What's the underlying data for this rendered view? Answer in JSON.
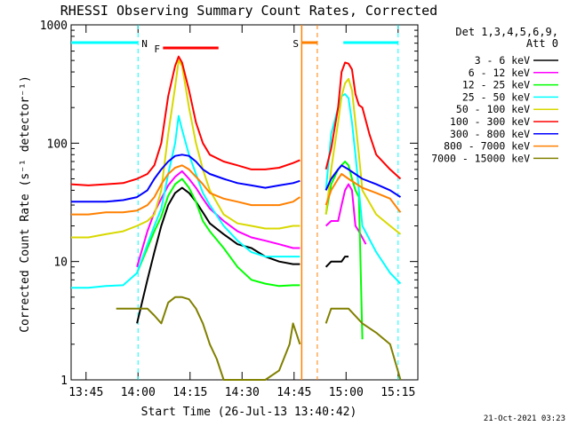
{
  "chart_data": {
    "type": "line",
    "title": "RHESSI Observing Summary Count Rates, Corrected",
    "xlabel": "Start Time (26-Jul-13 13:40:42)",
    "ylabel": "Corrected Count Rate (s⁻¹ detector⁻¹)",
    "y_scale": "log",
    "ylim": [
      1,
      1000
    ],
    "xlim_minutes": [
      0,
      100
    ],
    "x_ticks": [
      {
        "t": 4.3,
        "label": "13:45"
      },
      {
        "t": 19.3,
        "label": "14:00"
      },
      {
        "t": 34.3,
        "label": "14:15"
      },
      {
        "t": 49.3,
        "label": "14:30"
      },
      {
        "t": 64.3,
        "label": "14:45"
      },
      {
        "t": 79.3,
        "label": "15:00"
      },
      {
        "t": 94.3,
        "label": "15:15"
      }
    ],
    "y_ticks": [
      {
        "v": 1,
        "label": "1"
      },
      {
        "v": 10,
        "label": "10"
      },
      {
        "v": 100,
        "label": "100"
      },
      {
        "v": 1000,
        "label": "1000"
      }
    ],
    "legend_header": [
      "Det 1,3,4,5,6,9,",
      "Att 0"
    ],
    "legend_placement": "right",
    "gaps": [
      [
        66.5,
        73.0
      ]
    ],
    "series": [
      {
        "name": "3 - 6 keV",
        "color": "#000000",
        "points": [
          [
            19,
            3
          ],
          [
            22,
            7
          ],
          [
            24,
            12
          ],
          [
            26,
            20
          ],
          [
            28,
            30
          ],
          [
            30,
            38
          ],
          [
            32,
            42
          ],
          [
            34,
            38
          ],
          [
            36,
            32
          ],
          [
            38,
            26
          ],
          [
            40,
            21
          ],
          [
            44,
            17
          ],
          [
            48,
            14
          ],
          [
            52,
            13
          ],
          [
            56,
            11
          ],
          [
            60,
            10
          ],
          [
            64,
            9.5
          ],
          [
            66,
            9.5
          ],
          [
            73.5,
            9
          ],
          [
            75,
            10
          ],
          [
            78,
            10
          ],
          [
            79,
            11
          ],
          [
            80,
            11
          ]
        ]
      },
      {
        "name": "6 - 12 keV",
        "color": "#ff00ff",
        "points": [
          [
            19,
            9
          ],
          [
            22,
            18
          ],
          [
            24,
            26
          ],
          [
            26,
            34
          ],
          [
            28,
            44
          ],
          [
            30,
            52
          ],
          [
            32,
            58
          ],
          [
            34,
            50
          ],
          [
            36,
            42
          ],
          [
            38,
            34
          ],
          [
            40,
            28
          ],
          [
            44,
            22
          ],
          [
            48,
            18
          ],
          [
            52,
            16
          ],
          [
            56,
            15
          ],
          [
            60,
            14
          ],
          [
            64,
            13
          ],
          [
            66,
            13
          ],
          [
            73.5,
            20
          ],
          [
            75,
            22
          ],
          [
            77,
            22
          ],
          [
            78,
            30
          ],
          [
            79,
            40
          ],
          [
            80,
            45
          ],
          [
            81,
            40
          ],
          [
            82,
            20
          ],
          [
            83,
            18
          ],
          [
            85,
            14
          ]
        ]
      },
      {
        "name": "12 - 25 keV",
        "color": "#00ff00",
        "points": [
          [
            19,
            8
          ],
          [
            22,
            13
          ],
          [
            24,
            18
          ],
          [
            26,
            24
          ],
          [
            28,
            36
          ],
          [
            30,
            45
          ],
          [
            32,
            50
          ],
          [
            34,
            42
          ],
          [
            36,
            32
          ],
          [
            38,
            22
          ],
          [
            40,
            18
          ],
          [
            44,
            13
          ],
          [
            48,
            9
          ],
          [
            52,
            7
          ],
          [
            56,
            6.5
          ],
          [
            60,
            6.2
          ],
          [
            64,
            6.3
          ],
          [
            66,
            6.3
          ],
          [
            73.5,
            25
          ],
          [
            75,
            45
          ],
          [
            77,
            60
          ],
          [
            78,
            65
          ],
          [
            79,
            70
          ],
          [
            80,
            65
          ],
          [
            81,
            50
          ],
          [
            82,
            40
          ],
          [
            83,
            35
          ],
          [
            84,
            2.2
          ]
        ]
      },
      {
        "name": "25 - 50 keV",
        "color": "#00ffff",
        "points": [
          [
            0,
            6
          ],
          [
            5,
            6
          ],
          [
            10,
            6.2
          ],
          [
            15,
            6.3
          ],
          [
            19,
            8
          ],
          [
            22,
            14
          ],
          [
            24,
            20
          ],
          [
            26,
            28
          ],
          [
            28,
            55
          ],
          [
            30,
            100
          ],
          [
            31,
            170
          ],
          [
            32,
            130
          ],
          [
            34,
            80
          ],
          [
            36,
            55
          ],
          [
            38,
            38
          ],
          [
            40,
            30
          ],
          [
            44,
            20
          ],
          [
            48,
            15
          ],
          [
            52,
            12
          ],
          [
            56,
            11
          ],
          [
            60,
            11
          ],
          [
            64,
            11
          ],
          [
            66,
            11
          ],
          [
            73.5,
            40
          ],
          [
            75,
            120
          ],
          [
            77,
            200
          ],
          [
            78,
            250
          ],
          [
            79,
            260
          ],
          [
            80,
            240
          ],
          [
            81,
            150
          ],
          [
            82,
            80
          ],
          [
            83,
            40
          ],
          [
            84,
            20
          ],
          [
            88,
            12
          ],
          [
            92,
            8
          ],
          [
            95,
            6.5
          ]
        ]
      },
      {
        "name": "50 - 100 keV",
        "color": "#d8d800",
        "points": [
          [
            0,
            16
          ],
          [
            5,
            16
          ],
          [
            10,
            17
          ],
          [
            15,
            18
          ],
          [
            19,
            20
          ],
          [
            22,
            22
          ],
          [
            24,
            25
          ],
          [
            26,
            40
          ],
          [
            28,
            120
          ],
          [
            30,
            300
          ],
          [
            31,
            500
          ],
          [
            32,
            450
          ],
          [
            34,
            200
          ],
          [
            36,
            100
          ],
          [
            38,
            60
          ],
          [
            40,
            40
          ],
          [
            44,
            25
          ],
          [
            48,
            21
          ],
          [
            52,
            20
          ],
          [
            56,
            19
          ],
          [
            60,
            19
          ],
          [
            64,
            20
          ],
          [
            66,
            20
          ],
          [
            73.5,
            25
          ],
          [
            75,
            60
          ],
          [
            77,
            150
          ],
          [
            78,
            250
          ],
          [
            79,
            320
          ],
          [
            80,
            350
          ],
          [
            81,
            280
          ],
          [
            82,
            150
          ],
          [
            83,
            80
          ],
          [
            84,
            40
          ],
          [
            88,
            25
          ],
          [
            92,
            20
          ],
          [
            95,
            17
          ]
        ]
      },
      {
        "name": "100 - 300 keV",
        "color": "#ff0000",
        "points": [
          [
            0,
            45
          ],
          [
            5,
            44
          ],
          [
            10,
            45
          ],
          [
            15,
            46
          ],
          [
            19,
            50
          ],
          [
            22,
            55
          ],
          [
            24,
            65
          ],
          [
            26,
            100
          ],
          [
            28,
            250
          ],
          [
            30,
            450
          ],
          [
            31,
            540
          ],
          [
            32,
            480
          ],
          [
            34,
            280
          ],
          [
            36,
            150
          ],
          [
            38,
            100
          ],
          [
            40,
            80
          ],
          [
            44,
            70
          ],
          [
            48,
            65
          ],
          [
            52,
            60
          ],
          [
            56,
            60
          ],
          [
            60,
            62
          ],
          [
            64,
            68
          ],
          [
            66,
            72
          ],
          [
            73.5,
            60
          ],
          [
            75,
            90
          ],
          [
            77,
            200
          ],
          [
            78,
            400
          ],
          [
            79,
            480
          ],
          [
            80,
            470
          ],
          [
            81,
            420
          ],
          [
            82,
            260
          ],
          [
            83,
            210
          ],
          [
            84,
            200
          ],
          [
            86,
            120
          ],
          [
            88,
            80
          ],
          [
            92,
            60
          ],
          [
            95,
            50
          ]
        ]
      },
      {
        "name": "300 - 800 keV",
        "color": "#0000ff",
        "points": [
          [
            0,
            32
          ],
          [
            5,
            32
          ],
          [
            10,
            32
          ],
          [
            15,
            33
          ],
          [
            19,
            35
          ],
          [
            22,
            40
          ],
          [
            24,
            50
          ],
          [
            26,
            60
          ],
          [
            28,
            70
          ],
          [
            30,
            78
          ],
          [
            32,
            80
          ],
          [
            34,
            78
          ],
          [
            36,
            70
          ],
          [
            38,
            60
          ],
          [
            40,
            55
          ],
          [
            44,
            50
          ],
          [
            48,
            46
          ],
          [
            52,
            44
          ],
          [
            56,
            42
          ],
          [
            60,
            44
          ],
          [
            64,
            46
          ],
          [
            66,
            48
          ],
          [
            73.5,
            40
          ],
          [
            75,
            50
          ],
          [
            77,
            60
          ],
          [
            78,
            65
          ],
          [
            80,
            60
          ],
          [
            84,
            50
          ],
          [
            88,
            45
          ],
          [
            92,
            40
          ],
          [
            95,
            35
          ]
        ]
      },
      {
        "name": "800 - 7000 keV",
        "color": "#ff8000",
        "points": [
          [
            0,
            25
          ],
          [
            5,
            25
          ],
          [
            10,
            26
          ],
          [
            15,
            26
          ],
          [
            19,
            27
          ],
          [
            22,
            30
          ],
          [
            24,
            35
          ],
          [
            26,
            45
          ],
          [
            28,
            55
          ],
          [
            30,
            62
          ],
          [
            32,
            65
          ],
          [
            34,
            60
          ],
          [
            36,
            52
          ],
          [
            38,
            45
          ],
          [
            40,
            38
          ],
          [
            44,
            34
          ],
          [
            48,
            32
          ],
          [
            52,
            30
          ],
          [
            56,
            30
          ],
          [
            60,
            30
          ],
          [
            64,
            32
          ],
          [
            66,
            35
          ],
          [
            73.5,
            30
          ],
          [
            75,
            40
          ],
          [
            77,
            50
          ],
          [
            78,
            55
          ],
          [
            80,
            50
          ],
          [
            84,
            42
          ],
          [
            88,
            38
          ],
          [
            92,
            34
          ],
          [
            95,
            26
          ]
        ]
      },
      {
        "name": "7000 - 15000 keV",
        "color": "#808000",
        "points": [
          [
            13,
            4
          ],
          [
            16,
            4
          ],
          [
            19,
            4
          ],
          [
            22,
            4
          ],
          [
            24,
            3.5
          ],
          [
            26,
            3
          ],
          [
            28,
            4.5
          ],
          [
            30,
            5
          ],
          [
            32,
            5
          ],
          [
            34,
            4.8
          ],
          [
            36,
            4
          ],
          [
            38,
            3
          ],
          [
            40,
            2
          ],
          [
            42,
            1.5
          ],
          [
            44,
            1
          ],
          [
            50,
            1
          ],
          [
            56,
            1
          ],
          [
            60,
            1.2
          ],
          [
            63,
            2
          ],
          [
            64,
            3
          ],
          [
            66,
            2
          ],
          [
            73.5,
            3
          ],
          [
            75,
            4
          ],
          [
            78,
            4
          ],
          [
            80,
            4
          ],
          [
            84,
            3
          ],
          [
            88,
            2.5
          ],
          [
            92,
            2
          ],
          [
            95,
            1
          ]
        ]
      }
    ],
    "annotations": [
      {
        "label": "N",
        "color": "#00ffff",
        "x0": 0,
        "x1": 19.3,
        "y": 1.0,
        "marker_t": 19.3,
        "dashed": true
      },
      {
        "label": "F",
        "color": "#ff0000",
        "x0": 26.5,
        "x1": 42.5,
        "y": 0.95,
        "marker_t": null,
        "dashed": false
      },
      {
        "label": "S",
        "color": "#ff8000",
        "x0": 66.5,
        "x1": 71.0,
        "y": 1.0,
        "marker_t": 71.0,
        "dashed": true
      },
      {
        "label": "",
        "color": "#00ffff",
        "x0": 78.5,
        "x1": 94.3,
        "y": 1.0,
        "marker_t": 94.3,
        "dashed": true
      }
    ],
    "grid": false
  },
  "footer": {
    "timestamp": "21-Oct-2021 03:23"
  }
}
